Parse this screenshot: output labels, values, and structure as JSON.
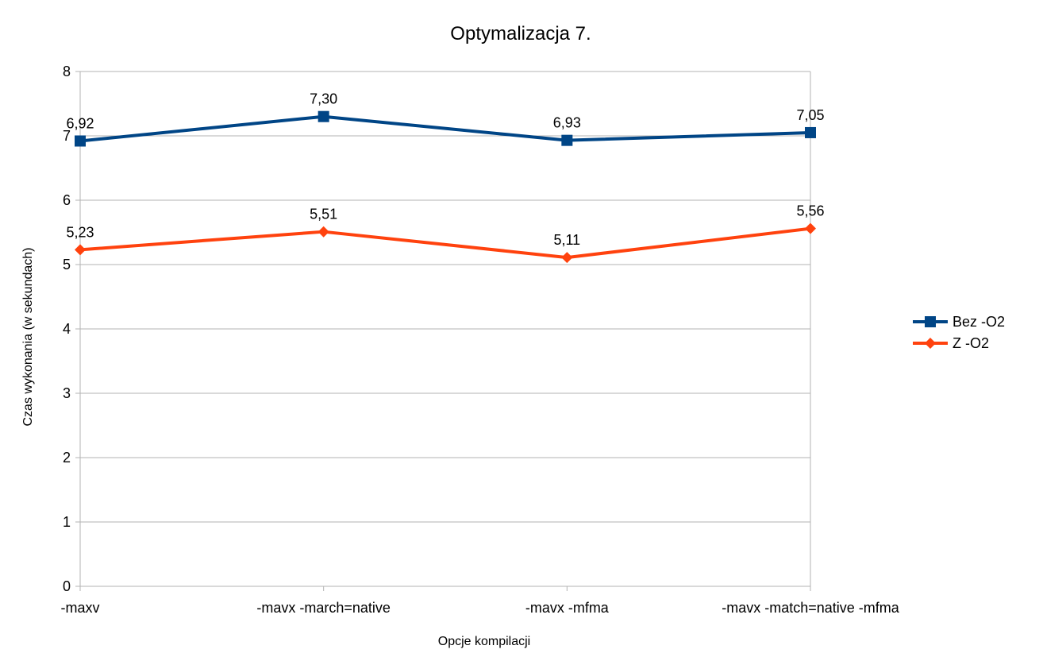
{
  "chart_data": {
    "type": "line",
    "title": "Optymalizacja 7.",
    "xlabel": "Opcje kompilacji",
    "ylabel": "Czas wykonania (w sekundach)",
    "categories": [
      "-maxv",
      "-mavx -march=native",
      "-mavx -mfma",
      "-mavx -match=native -mfma"
    ],
    "ylim": [
      0,
      8
    ],
    "yticks": [
      "0",
      "1",
      "2",
      "3",
      "4",
      "5",
      "6",
      "7",
      "8"
    ],
    "grid": true,
    "legend_position": "right",
    "series": [
      {
        "name": "Bez -O2",
        "color": "#004586",
        "marker": "square",
        "values": [
          6.92,
          7.3,
          6.93,
          7.05
        ],
        "labels": [
          "6,92",
          "7,30",
          "6,93",
          "7,05"
        ]
      },
      {
        "name": "Z -O2",
        "color": "#ff420e",
        "marker": "diamond",
        "values": [
          5.23,
          5.51,
          5.11,
          5.56
        ],
        "labels": [
          "5,23",
          "5,51",
          "5,11",
          "5,56"
        ]
      }
    ]
  }
}
